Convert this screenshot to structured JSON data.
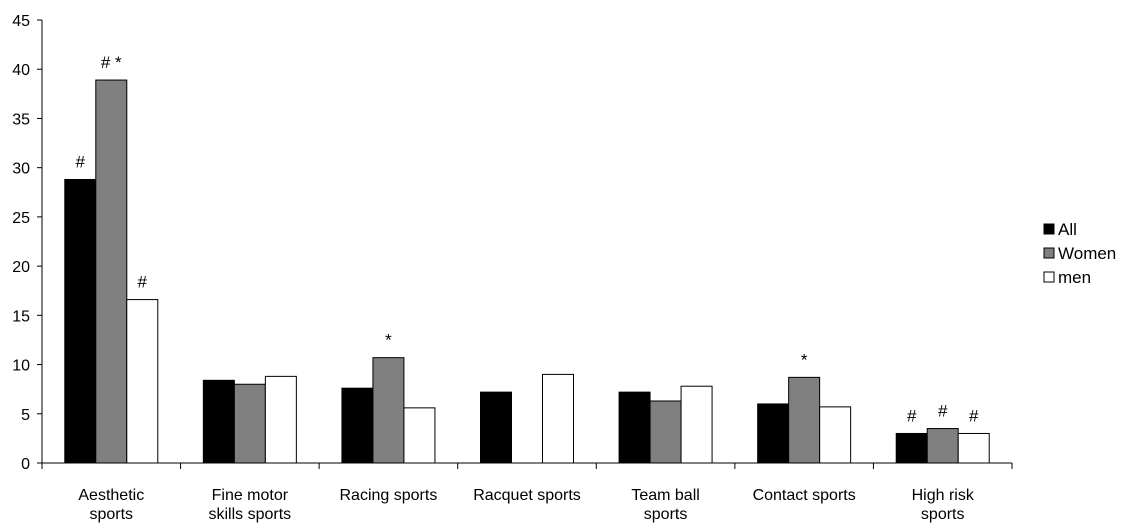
{
  "chart_data": {
    "type": "bar",
    "title": "",
    "xlabel": "",
    "ylabel": "",
    "ylim": [
      0,
      45
    ],
    "yticks": [
      0,
      5,
      10,
      15,
      20,
      25,
      30,
      35,
      40,
      45
    ],
    "grid": false,
    "legend_position": "right",
    "categories": [
      [
        "Aesthetic",
        "sports"
      ],
      [
        "Fine motor",
        "skills sports"
      ],
      [
        "Racing sports"
      ],
      [
        "Racquet sports"
      ],
      [
        "Team ball",
        "sports"
      ],
      [
        "Contact sports"
      ],
      [
        "High risk",
        "sports"
      ]
    ],
    "series": [
      {
        "name": "All",
        "color": "#000000",
        "values": [
          28.8,
          8.4,
          7.6,
          7.2,
          7.2,
          6.0,
          3.0
        ],
        "annotations": [
          "#",
          "",
          "",
          "",
          "",
          "",
          "#"
        ]
      },
      {
        "name": "Women",
        "color": "#808080",
        "values": [
          38.9,
          8.0,
          10.7,
          null,
          6.3,
          8.7,
          3.5
        ],
        "annotations": [
          "# *",
          "",
          "*",
          "",
          "",
          "*",
          "#"
        ]
      },
      {
        "name": "men",
        "color": "#ffffff",
        "values": [
          16.6,
          8.8,
          5.6,
          9.0,
          7.8,
          5.7,
          3.0
        ],
        "annotations": [
          "#",
          "",
          "",
          "",
          "",
          "",
          "#"
        ]
      }
    ]
  }
}
